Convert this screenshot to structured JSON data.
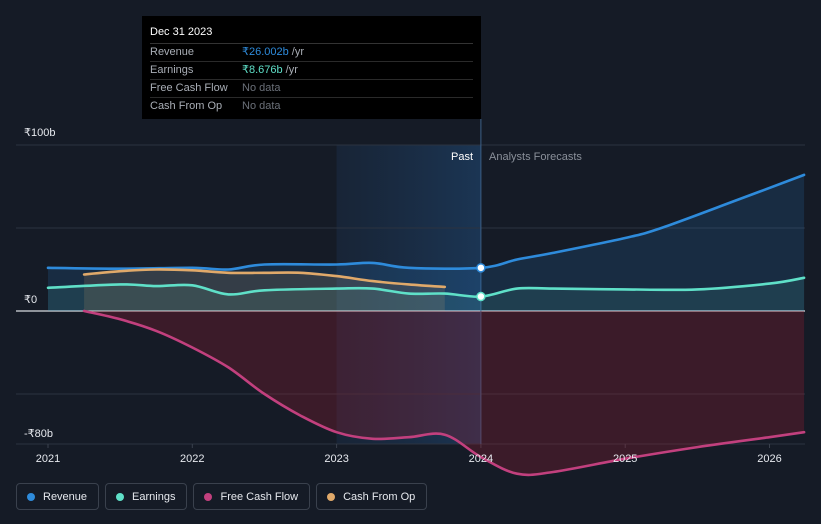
{
  "tooltip": {
    "date": "Dec 31 2023",
    "rows": [
      {
        "name": "Revenue",
        "value": "₹26.002b",
        "unit": "/yr",
        "color": "#2e8bdb"
      },
      {
        "name": "Earnings",
        "value": "₹8.676b",
        "unit": "/yr",
        "color": "#5fe0c8"
      },
      {
        "name": "Free Cash Flow",
        "value": "No data",
        "unit": "",
        "color": "#6b7079"
      },
      {
        "name": "Cash From Op",
        "value": "No data",
        "unit": "",
        "color": "#6b7079"
      }
    ]
  },
  "regions": {
    "past": "Past",
    "forecast": "Analysts Forecasts"
  },
  "legend": [
    {
      "label": "Revenue",
      "color": "#2e8bdb"
    },
    {
      "label": "Earnings",
      "color": "#5fe0c8"
    },
    {
      "label": "Free Cash Flow",
      "color": "#c2407e"
    },
    {
      "label": "Cash From Op",
      "color": "#e0a96a"
    }
  ],
  "chart_data": {
    "type": "line",
    "y_tick_labels": [
      "₹100b",
      "₹0",
      "-₹80b"
    ],
    "x_tick_labels": [
      "2021",
      "2022",
      "2023",
      "2024",
      "2025",
      "2026"
    ],
    "ylim": [
      -80,
      100
    ],
    "xlim": [
      2020.9,
      2026.24
    ],
    "divider_year": 2024.0,
    "highlight_start": 2023.0,
    "series": [
      {
        "name": "Revenue",
        "color": "#2e8bdb",
        "points": [
          [
            2021.0,
            26
          ],
          [
            2021.5,
            25.5
          ],
          [
            2022.0,
            26
          ],
          [
            2022.25,
            25
          ],
          [
            2022.5,
            28
          ],
          [
            2023.0,
            28
          ],
          [
            2023.25,
            29
          ],
          [
            2023.5,
            26
          ],
          [
            2024.0,
            26.0
          ],
          [
            2024.25,
            31
          ],
          [
            2024.5,
            35
          ],
          [
            2025.0,
            44
          ],
          [
            2025.25,
            50
          ],
          [
            2025.75,
            66
          ],
          [
            2026.24,
            82
          ]
        ]
      },
      {
        "name": "Earnings",
        "color": "#5fe0c8",
        "points": [
          [
            2021.0,
            14
          ],
          [
            2021.5,
            16
          ],
          [
            2021.75,
            15
          ],
          [
            2022.0,
            15.5
          ],
          [
            2022.25,
            10
          ],
          [
            2022.5,
            12.5
          ],
          [
            2023.0,
            13.5
          ],
          [
            2023.25,
            13.5
          ],
          [
            2023.5,
            10.5
          ],
          [
            2023.75,
            10.5
          ],
          [
            2024.0,
            8.7
          ],
          [
            2024.25,
            13.5
          ],
          [
            2024.5,
            13.5
          ],
          [
            2025.0,
            13
          ],
          [
            2025.5,
            13
          ],
          [
            2026.0,
            16.5
          ],
          [
            2026.24,
            20
          ]
        ]
      },
      {
        "name": "Free Cash Flow",
        "color": "#c2407e",
        "points": [
          [
            2021.25,
            0
          ],
          [
            2021.5,
            -5
          ],
          [
            2021.75,
            -12
          ],
          [
            2022.0,
            -22
          ],
          [
            2022.25,
            -34
          ],
          [
            2022.5,
            -50
          ],
          [
            2022.75,
            -63
          ],
          [
            2023.0,
            -73
          ],
          [
            2023.25,
            -77
          ],
          [
            2023.5,
            -76
          ],
          [
            2023.75,
            -74.5
          ],
          [
            2024.0,
            -88
          ],
          [
            2024.25,
            -98
          ],
          [
            2024.5,
            -97
          ],
          [
            2025.0,
            -89
          ],
          [
            2025.5,
            -82
          ],
          [
            2026.0,
            -76
          ],
          [
            2026.24,
            -73
          ]
        ]
      },
      {
        "name": "Cash From Op",
        "color": "#e0a96a",
        "points": [
          [
            2021.25,
            22
          ],
          [
            2021.5,
            24
          ],
          [
            2021.75,
            25
          ],
          [
            2022.0,
            24.5
          ],
          [
            2022.25,
            23
          ],
          [
            2022.5,
            23
          ],
          [
            2022.75,
            23
          ],
          [
            2023.0,
            21
          ],
          [
            2023.25,
            18
          ],
          [
            2023.5,
            16
          ],
          [
            2023.75,
            14.5
          ]
        ]
      }
    ],
    "markers": [
      {
        "series": "Revenue",
        "x": 2024.0,
        "y": 26.0
      },
      {
        "series": "Earnings",
        "x": 2024.0,
        "y": 8.7
      }
    ],
    "grid": true
  }
}
